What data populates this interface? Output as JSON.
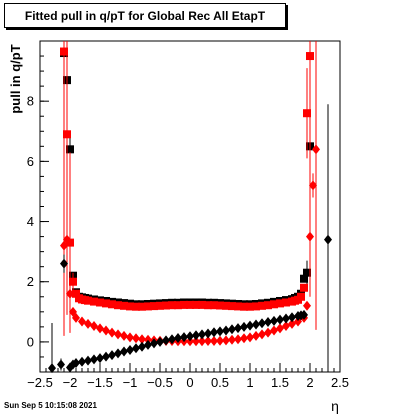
{
  "title": "Fitted pull in q/pT for Global Rec All EtapT",
  "timestamp": "Sun Sep  5 10:15:08 2021",
  "colors": {
    "black_series": "#000000",
    "red_series": "#ff0000"
  },
  "chart_data": {
    "type": "scatter",
    "title": "Fitted pull in q/pT for Global Rec All EtapT",
    "xlabel": "η",
    "ylabel": "pull in q/pT",
    "xlim": [
      -2.5,
      2.5
    ],
    "ylim": [
      -1.0,
      10.0
    ],
    "x_ticks": [
      {
        "v": -2.5,
        "label": "−2.5"
      },
      {
        "v": -2,
        "label": "−2"
      },
      {
        "v": -1.5,
        "label": "−1.5"
      },
      {
        "v": -1,
        "label": "−1"
      },
      {
        "v": -0.5,
        "label": "−0.5"
      },
      {
        "v": 0,
        "label": "0"
      },
      {
        "v": 0.5,
        "label": "0.5"
      },
      {
        "v": 1,
        "label": "1"
      },
      {
        "v": 1.5,
        "label": "1.5"
      },
      {
        "v": 2,
        "label": "2"
      },
      {
        "v": 2.5,
        "label": "2.5"
      }
    ],
    "y_ticks": [
      {
        "v": 0,
        "label": "0"
      },
      {
        "v": 2,
        "label": "2"
      },
      {
        "v": 4,
        "label": "4"
      },
      {
        "v": 6,
        "label": "6"
      },
      {
        "v": 8,
        "label": "8"
      }
    ],
    "grid": false,
    "series": [
      {
        "color": "#000000",
        "marker": "square",
        "x": [
          -2.1,
          -2.05,
          -2.0,
          -1.95,
          -1.9,
          -1.85,
          -1.8,
          -1.75,
          -1.7,
          -1.6,
          -1.5,
          -1.4,
          -1.3,
          -1.2,
          -1.1,
          -1.0,
          -0.9,
          -0.8,
          -0.7,
          -0.6,
          -0.5,
          -0.4,
          -0.3,
          -0.2,
          -0.1,
          0.0,
          0.1,
          0.2,
          0.3,
          0.4,
          0.5,
          0.6,
          0.7,
          0.8,
          0.9,
          1.0,
          1.1,
          1.2,
          1.3,
          1.4,
          1.5,
          1.6,
          1.7,
          1.75,
          1.8,
          1.85,
          1.9,
          1.95,
          2.0
        ],
        "y": [
          9.6,
          8.7,
          6.4,
          2.2,
          1.65,
          1.5,
          1.48,
          1.46,
          1.44,
          1.41,
          1.38,
          1.36,
          1.33,
          1.31,
          1.29,
          1.27,
          1.25,
          1.25,
          1.26,
          1.27,
          1.28,
          1.29,
          1.3,
          1.3,
          1.31,
          1.31,
          1.31,
          1.31,
          1.3,
          1.3,
          1.29,
          1.28,
          1.27,
          1.26,
          1.25,
          1.25,
          1.26,
          1.28,
          1.3,
          1.33,
          1.36,
          1.39,
          1.42,
          1.46,
          1.5,
          1.6,
          2.1,
          2.3,
          6.5
        ],
        "yerr": [
          8.0,
          0.4,
          0.4,
          0.1,
          0.05,
          0.03,
          0.02,
          0.02,
          0.02,
          0.02,
          0.02,
          0.02,
          0.02,
          0.02,
          0.02,
          0.02,
          0.02,
          0.02,
          0.02,
          0.02,
          0.02,
          0.02,
          0.02,
          0.02,
          0.02,
          0.02,
          0.02,
          0.02,
          0.02,
          0.02,
          0.02,
          0.02,
          0.02,
          0.02,
          0.02,
          0.02,
          0.02,
          0.02,
          0.02,
          0.02,
          0.02,
          0.02,
          0.02,
          0.02,
          0.03,
          0.05,
          0.1,
          0.4,
          0.4
        ]
      },
      {
        "color": "#ff0000",
        "marker": "square",
        "x": [
          -2.1,
          -2.05,
          -2.0,
          -1.95,
          -1.9,
          -1.85,
          -1.8,
          -1.75,
          -1.7,
          -1.6,
          -1.5,
          -1.4,
          -1.3,
          -1.2,
          -1.1,
          -1.0,
          -0.9,
          -0.8,
          -0.7,
          -0.6,
          -0.5,
          -0.4,
          -0.3,
          -0.2,
          -0.1,
          0.0,
          0.1,
          0.2,
          0.3,
          0.4,
          0.5,
          0.6,
          0.7,
          0.8,
          0.9,
          1.0,
          1.1,
          1.2,
          1.3,
          1.4,
          1.5,
          1.6,
          1.7,
          1.75,
          1.8,
          1.85,
          1.9,
          1.95,
          2.0
        ],
        "y": [
          9.65,
          6.9,
          3.3,
          2.0,
          1.6,
          1.45,
          1.41,
          1.39,
          1.37,
          1.34,
          1.31,
          1.28,
          1.25,
          1.22,
          1.2,
          1.18,
          1.17,
          1.17,
          1.18,
          1.19,
          1.2,
          1.21,
          1.22,
          1.22,
          1.23,
          1.23,
          1.23,
          1.23,
          1.22,
          1.22,
          1.21,
          1.2,
          1.19,
          1.18,
          1.17,
          1.17,
          1.18,
          1.2,
          1.22,
          1.25,
          1.28,
          1.31,
          1.34,
          1.37,
          1.4,
          1.5,
          1.8,
          7.6,
          9.5
        ],
        "yerr": [
          8.5,
          6.0,
          3.0,
          0.3,
          0.05,
          0.03,
          0.02,
          0.02,
          0.02,
          0.02,
          0.02,
          0.02,
          0.02,
          0.02,
          0.02,
          0.02,
          0.02,
          0.02,
          0.02,
          0.02,
          0.02,
          0.02,
          0.02,
          0.02,
          0.02,
          0.02,
          0.02,
          0.02,
          0.02,
          0.02,
          0.02,
          0.02,
          0.02,
          0.02,
          0.02,
          0.02,
          0.02,
          0.02,
          0.02,
          0.02,
          0.02,
          0.02,
          0.02,
          0.02,
          0.03,
          0.05,
          0.1,
          1.5,
          8.0
        ]
      },
      {
        "color": "#ff0000",
        "marker": "diamond",
        "x": [
          -2.1,
          -2.05,
          -2.0,
          -1.95,
          -1.9,
          -1.8,
          -1.7,
          -1.6,
          -1.5,
          -1.4,
          -1.3,
          -1.2,
          -1.1,
          -1.0,
          -0.9,
          -0.8,
          -0.7,
          -0.6,
          -0.5,
          -0.4,
          -0.3,
          -0.2,
          -0.1,
          0.0,
          0.1,
          0.2,
          0.3,
          0.4,
          0.5,
          0.6,
          0.7,
          0.8,
          0.9,
          1.0,
          1.1,
          1.2,
          1.3,
          1.4,
          1.5,
          1.6,
          1.7,
          1.8,
          1.9,
          1.95,
          2.0,
          2.05,
          2.1
        ],
        "y": [
          3.2,
          3.4,
          1.6,
          1.0,
          0.8,
          0.68,
          0.6,
          0.53,
          0.45,
          0.38,
          0.31,
          0.25,
          0.2,
          0.15,
          0.12,
          0.09,
          0.07,
          0.05,
          0.04,
          0.03,
          0.03,
          0.02,
          0.02,
          0.02,
          0.02,
          0.02,
          0.03,
          0.03,
          0.04,
          0.05,
          0.07,
          0.09,
          0.12,
          0.15,
          0.2,
          0.25,
          0.31,
          0.38,
          0.45,
          0.53,
          0.6,
          0.68,
          0.8,
          1.2,
          3.5,
          5.2,
          6.4
        ],
        "yerr": [
          3.0,
          0.5,
          0.2,
          0.05,
          0.03,
          0.02,
          0.02,
          0.02,
          0.02,
          0.02,
          0.02,
          0.02,
          0.02,
          0.02,
          0.02,
          0.02,
          0.02,
          0.02,
          0.02,
          0.02,
          0.02,
          0.02,
          0.02,
          0.02,
          0.02,
          0.02,
          0.02,
          0.02,
          0.02,
          0.02,
          0.02,
          0.02,
          0.02,
          0.02,
          0.02,
          0.02,
          0.02,
          0.02,
          0.02,
          0.02,
          0.02,
          0.02,
          0.03,
          0.05,
          0.3,
          0.4,
          6.0
        ]
      },
      {
        "color": "#000000",
        "marker": "diamond",
        "x": [
          -2.3,
          -2.15,
          -2.1,
          -2.0,
          -1.95,
          -1.9,
          -1.8,
          -1.7,
          -1.6,
          -1.5,
          -1.4,
          -1.3,
          -1.2,
          -1.1,
          -1.0,
          -0.9,
          -0.8,
          -0.7,
          -0.6,
          -0.5,
          -0.4,
          -0.3,
          -0.2,
          -0.1,
          0.0,
          0.1,
          0.2,
          0.3,
          0.4,
          0.5,
          0.6,
          0.7,
          0.8,
          0.9,
          1.0,
          1.1,
          1.2,
          1.3,
          1.4,
          1.5,
          1.6,
          1.7,
          1.8,
          1.85,
          1.9,
          2.3
        ],
        "y": [
          -0.87,
          -0.75,
          2.6,
          -0.85,
          -0.75,
          -0.7,
          -0.66,
          -0.62,
          -0.58,
          -0.54,
          -0.49,
          -0.44,
          -0.38,
          -0.32,
          -0.27,
          -0.21,
          -0.16,
          -0.1,
          -0.05,
          0.0,
          0.05,
          0.09,
          0.13,
          0.16,
          0.19,
          0.22,
          0.25,
          0.28,
          0.32,
          0.35,
          0.38,
          0.42,
          0.46,
          0.5,
          0.54,
          0.58,
          0.62,
          0.66,
          0.7,
          0.74,
          0.78,
          0.82,
          0.86,
          0.88,
          0.9,
          3.4
        ],
        "yerr": [
          1.5,
          0.2,
          0.3,
          0.05,
          0.03,
          0.02,
          0.02,
          0.02,
          0.02,
          0.02,
          0.02,
          0.02,
          0.02,
          0.02,
          0.02,
          0.02,
          0.02,
          0.02,
          0.02,
          0.02,
          0.02,
          0.02,
          0.02,
          0.02,
          0.02,
          0.02,
          0.02,
          0.02,
          0.02,
          0.02,
          0.02,
          0.02,
          0.02,
          0.02,
          0.02,
          0.02,
          0.02,
          0.02,
          0.02,
          0.02,
          0.02,
          0.02,
          0.03,
          0.05,
          0.1,
          4.5
        ]
      }
    ]
  }
}
